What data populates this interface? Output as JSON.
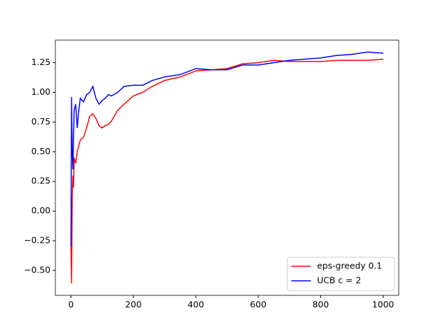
{
  "chart_data": {
    "type": "line",
    "x": [
      0,
      2,
      4,
      6,
      8,
      10,
      15,
      20,
      25,
      30,
      40,
      50,
      60,
      70,
      80,
      90,
      100,
      110,
      120,
      130,
      150,
      170,
      200,
      230,
      260,
      300,
      350,
      400,
      450,
      500,
      550,
      600,
      650,
      700,
      750,
      800,
      850,
      900,
      950,
      1000
    ],
    "series": [
      {
        "name": "eps-greedy 0.1",
        "color": "#ff0000",
        "values": [
          -0.3,
          -0.61,
          0.1,
          0.3,
          0.2,
          0.45,
          0.4,
          0.5,
          0.55,
          0.6,
          0.62,
          0.7,
          0.8,
          0.82,
          0.78,
          0.72,
          0.7,
          0.72,
          0.73,
          0.76,
          0.85,
          0.9,
          0.97,
          1.0,
          1.05,
          1.1,
          1.13,
          1.18,
          1.19,
          1.2,
          1.24,
          1.25,
          1.27,
          1.26,
          1.26,
          1.26,
          1.27,
          1.27,
          1.27,
          1.28
        ]
      },
      {
        "name": "UCB c = 2",
        "color": "#0000ff",
        "values": [
          -0.3,
          0.96,
          0.5,
          0.35,
          0.6,
          0.85,
          0.9,
          0.7,
          0.85,
          0.95,
          0.92,
          0.98,
          1.0,
          1.05,
          0.95,
          0.9,
          0.93,
          0.95,
          0.98,
          0.97,
          1.0,
          1.05,
          1.06,
          1.06,
          1.1,
          1.13,
          1.15,
          1.2,
          1.19,
          1.19,
          1.23,
          1.23,
          1.25,
          1.27,
          1.28,
          1.29,
          1.31,
          1.32,
          1.34,
          1.33
        ]
      }
    ],
    "xlim": [
      -50,
      1050
    ],
    "xticks": [
      0,
      200,
      400,
      600,
      800,
      1000
    ],
    "ylim": [
      -0.71,
      1.44
    ],
    "yticks": [
      {
        "value": -0.5,
        "label": "−0.50"
      },
      {
        "value": -0.25,
        "label": "−0.25"
      },
      {
        "value": 0,
        "label": "0.00"
      },
      {
        "value": 0.25,
        "label": "0.25"
      },
      {
        "value": 0.5,
        "label": "0.50"
      },
      {
        "value": 0.75,
        "label": "0.75"
      },
      {
        "value": 1.0,
        "label": "1.00"
      },
      {
        "value": 1.25,
        "label": "1.25"
      }
    ],
    "legend": "lower right"
  }
}
